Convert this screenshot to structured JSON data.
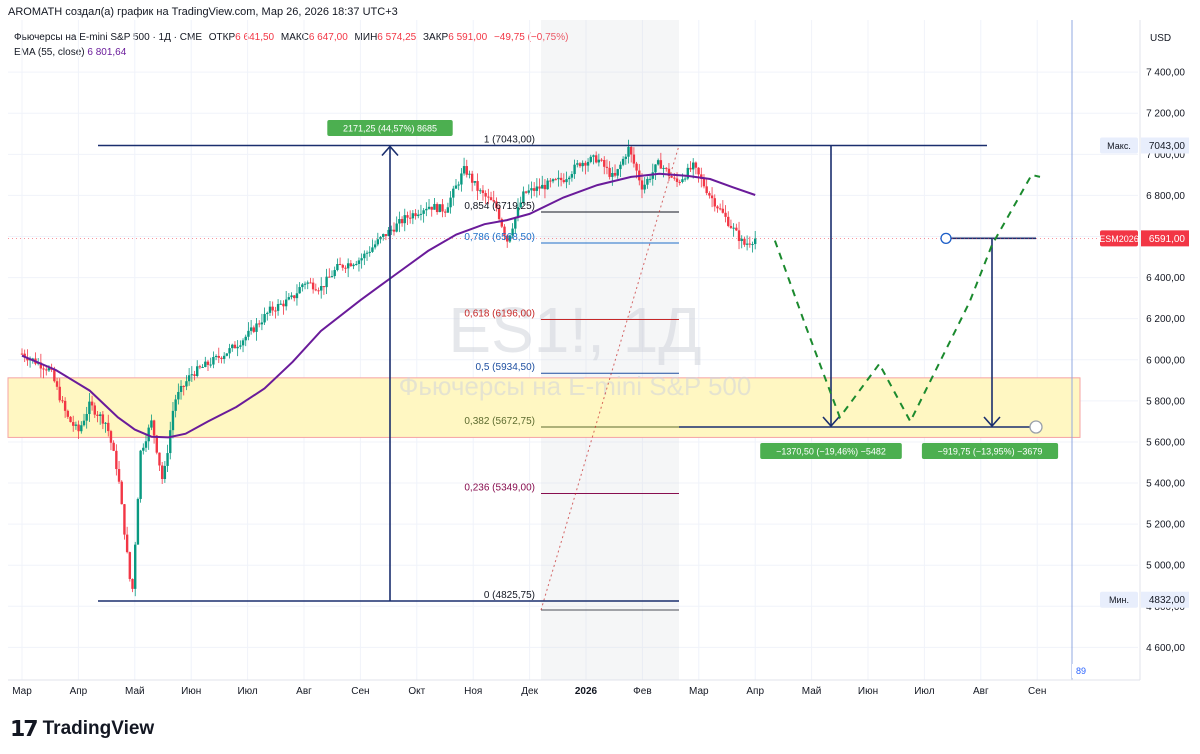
{
  "attribution": "AROMATH создал(a) график на TradingView.com, Мар 26, 2026 18:37 UTC+3",
  "legend": {
    "symbol": "Фьючерсы на E-mini S&P 500 · 1Д · CME",
    "open_label": "ОТКР",
    "open": "6 641,50",
    "high_label": "МАКС",
    "high": "6 647,00",
    "low_label": "МИН",
    "low": "6 574,25",
    "close_label": "ЗАКР",
    "close": "6 591,00",
    "change": "−49,75 (−0,75%)",
    "ema_label": "EMA (55, close)",
    "ema_value": "6 801,64"
  },
  "watermark": {
    "ticker": "ES1!, 1Д",
    "name": "Фьючерсы на E-mini S&P 500"
  },
  "currency": "USD",
  "brand": "TradingView",
  "badge_89": "89",
  "chart_data": {
    "type": "candlestick",
    "x_ticks": [
      "Мар",
      "Апр",
      "Май",
      "Июн",
      "Июл",
      "Авг",
      "Сен",
      "Окт",
      "Ноя",
      "Дек",
      "2026",
      "Фев",
      "Мар",
      "Апр",
      "Май",
      "Июн",
      "Июл",
      "Авг",
      "Сен"
    ],
    "y_ticks": [
      "7 400,00",
      "7 200,00",
      "7 000,00",
      "6 800,00",
      "6 600,00",
      "6 400,00",
      "6 200,00",
      "6 000,00",
      "5 800,00",
      "5 600,00",
      "5 400,00",
      "5 200,00",
      "5 000,00",
      "4 800,00",
      "4 600,00"
    ],
    "ylim": [
      4500,
      7550
    ],
    "price_path": [
      {
        "t": 0,
        "p": 6030
      },
      {
        "t": 0.5,
        "p": 5950
      },
      {
        "t": 0.8,
        "p": 5720
      },
      {
        "t": 1.0,
        "p": 5650
      },
      {
        "t": 1.2,
        "p": 5780
      },
      {
        "t": 1.5,
        "p": 5690
      },
      {
        "t": 1.7,
        "p": 5450
      },
      {
        "t": 1.95,
        "p": 4840
      },
      {
        "t": 2.1,
        "p": 5550
      },
      {
        "t": 2.3,
        "p": 5700
      },
      {
        "t": 2.5,
        "p": 5400
      },
      {
        "t": 2.7,
        "p": 5800
      },
      {
        "t": 3.0,
        "p": 5930
      },
      {
        "t": 3.3,
        "p": 5980
      },
      {
        "t": 3.7,
        "p": 6050
      },
      {
        "t": 4.0,
        "p": 6120
      },
      {
        "t": 4.4,
        "p": 6240
      },
      {
        "t": 4.8,
        "p": 6300
      },
      {
        "t": 5.0,
        "p": 6380
      },
      {
        "t": 5.3,
        "p": 6350
      },
      {
        "t": 5.6,
        "p": 6450
      },
      {
        "t": 6.0,
        "p": 6490
      },
      {
        "t": 6.4,
        "p": 6600
      },
      {
        "t": 6.8,
        "p": 6690
      },
      {
        "t": 7.2,
        "p": 6750
      },
      {
        "t": 7.5,
        "p": 6730
      },
      {
        "t": 7.85,
        "p": 6930
      },
      {
        "t": 8.1,
        "p": 6820
      },
      {
        "t": 8.4,
        "p": 6750
      },
      {
        "t": 8.6,
        "p": 6580
      },
      {
        "t": 8.9,
        "p": 6810
      },
      {
        "t": 9.3,
        "p": 6850
      },
      {
        "t": 9.6,
        "p": 6880
      },
      {
        "t": 9.9,
        "p": 6960
      },
      {
        "t": 10.2,
        "p": 6980
      },
      {
        "t": 10.5,
        "p": 6880
      },
      {
        "t": 10.75,
        "p": 7030
      },
      {
        "t": 11.0,
        "p": 6840
      },
      {
        "t": 11.3,
        "p": 6960
      },
      {
        "t": 11.6,
        "p": 6860
      },
      {
        "t": 11.9,
        "p": 6940
      },
      {
        "t": 12.2,
        "p": 6800
      },
      {
        "t": 12.4,
        "p": 6720
      },
      {
        "t": 12.6,
        "p": 6640
      },
      {
        "t": 12.8,
        "p": 6560
      },
      {
        "t": 13.0,
        "p": 6591
      }
    ],
    "ema": [
      {
        "t": 0,
        "p": 6020
      },
      {
        "t": 0.6,
        "p": 5950
      },
      {
        "t": 1.2,
        "p": 5850
      },
      {
        "t": 1.7,
        "p": 5720
      },
      {
        "t": 2.0,
        "p": 5660
      },
      {
        "t": 2.3,
        "p": 5625
      },
      {
        "t": 2.6,
        "p": 5622
      },
      {
        "t": 2.9,
        "p": 5640
      },
      {
        "t": 3.3,
        "p": 5700
      },
      {
        "t": 3.8,
        "p": 5770
      },
      {
        "t": 4.3,
        "p": 5860
      },
      {
        "t": 4.8,
        "p": 5990
      },
      {
        "t": 5.3,
        "p": 6140
      },
      {
        "t": 6.0,
        "p": 6290
      },
      {
        "t": 6.6,
        "p": 6410
      },
      {
        "t": 7.2,
        "p": 6530
      },
      {
        "t": 7.7,
        "p": 6610
      },
      {
        "t": 8.2,
        "p": 6660
      },
      {
        "t": 8.6,
        "p": 6680
      },
      {
        "t": 9.0,
        "p": 6710
      },
      {
        "t": 9.6,
        "p": 6790
      },
      {
        "t": 10.2,
        "p": 6850
      },
      {
        "t": 10.8,
        "p": 6890
      },
      {
        "t": 11.3,
        "p": 6905
      },
      {
        "t": 11.8,
        "p": 6895
      },
      {
        "t": 12.2,
        "p": 6880
      },
      {
        "t": 12.6,
        "p": 6840
      },
      {
        "t": 13.0,
        "p": 6802
      }
    ],
    "fib": {
      "levels": [
        {
          "ratio": "1",
          "price": "7043,00",
          "value": 7043,
          "color": "#131722"
        },
        {
          "ratio": "0,854",
          "price": "6719,25",
          "value": 6719.25,
          "color": "#131722"
        },
        {
          "ratio": "0,786",
          "price": "6568,50",
          "value": 6568.5,
          "color": "#1e6fc8"
        },
        {
          "ratio": "0,618",
          "price": "6196,00",
          "value": 6196,
          "color": "#c62828"
        },
        {
          "ratio": "0,5",
          "price": "5934,50",
          "value": 5934.5,
          "color": "#1e4fa0"
        },
        {
          "ratio": "0,382",
          "price": "5672,75",
          "value": 5672.75,
          "color": "#5d6b2f"
        },
        {
          "ratio": "0,236",
          "price": "5349,00",
          "value": 5349,
          "color": "#880e4f"
        },
        {
          "ratio": "0",
          "price": "4825,75",
          "value": 4825.75,
          "color": "#131722"
        }
      ]
    },
    "support_zone": [
      5622,
      5912
    ],
    "measure_labels": {
      "up": "2171,25 (44,57%) 8685",
      "down1": "−1370,50 (−19,46%) −5482",
      "down2": "−919,75 (−13,95%) −3679"
    },
    "projection": [
      {
        "t": 13.35,
        "p": 6580
      },
      {
        "t": 13.9,
        "p": 6160
      },
      {
        "t": 14.5,
        "p": 5720
      },
      {
        "t": 15.2,
        "p": 5980
      },
      {
        "t": 15.75,
        "p": 5700
      },
      {
        "t": 16.8,
        "p": 6280
      },
      {
        "t": 17.2,
        "p": 6560
      },
      {
        "t": 17.9,
        "p": 6900
      },
      {
        "t": 18.05,
        "p": 6890
      }
    ],
    "price_tags": {
      "max_label": "Макс.",
      "max": "7043,00",
      "current_label": "ESM2026",
      "current": "6591,00",
      "min_label": "Мин.",
      "min": "4832,00"
    },
    "colors": {
      "up": "#089981",
      "down": "#f23645",
      "ema": "#6a1b9a",
      "tool": "#1a2e6e",
      "projection": "#1b8a2e",
      "zone": "#fff7c2",
      "label_green": "#4caf50"
    }
  }
}
